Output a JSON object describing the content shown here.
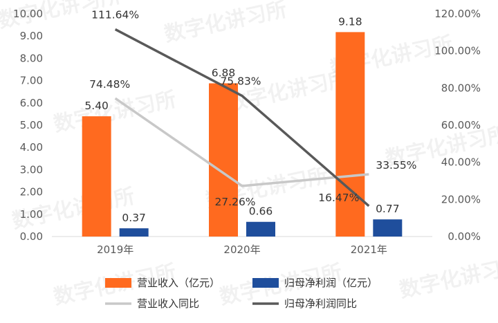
{
  "chart_data": {
    "type": "bar+line",
    "categories": [
      "2019年",
      "2020年",
      "2021年"
    ],
    "series": [
      {
        "name": "营业收入（亿元）",
        "type": "bar",
        "axis": "left",
        "color": "#FF6A1F",
        "values": [
          5.4,
          6.88,
          9.18
        ],
        "labels": [
          "5.40",
          "6.88",
          "9.18"
        ]
      },
      {
        "name": "归母净利润（亿元）",
        "type": "bar",
        "axis": "left",
        "color": "#1F4E9C",
        "values": [
          0.37,
          0.66,
          0.77
        ],
        "labels": [
          "0.37",
          "0.66",
          "0.77"
        ]
      },
      {
        "name": "营业收入同比",
        "type": "line",
        "axis": "right",
        "color": "#C8C8C8",
        "values": [
          74.48,
          27.26,
          33.55
        ],
        "labels": [
          "74.48%",
          "27.26%",
          "33.55%"
        ]
      },
      {
        "name": "归母净利润同比",
        "type": "line",
        "axis": "right",
        "color": "#595959",
        "values": [
          111.64,
          75.83,
          16.47
        ],
        "labels": [
          "111.64%",
          "75.83%",
          "16.47%"
        ]
      }
    ],
    "y_left": {
      "min": 0,
      "max": 10,
      "ticks": [
        "0.00",
        "1.00",
        "2.00",
        "3.00",
        "4.00",
        "5.00",
        "6.00",
        "7.00",
        "8.00",
        "9.00",
        "10.00"
      ]
    },
    "y_right": {
      "min": 0,
      "max": 120,
      "ticks": [
        "0.00%",
        "20.00%",
        "40.00%",
        "60.00%",
        "80.00%",
        "100.00%",
        "120.00%"
      ]
    },
    "legend_position": "bottom",
    "grid": false
  },
  "watermark": "数字化讲习所"
}
